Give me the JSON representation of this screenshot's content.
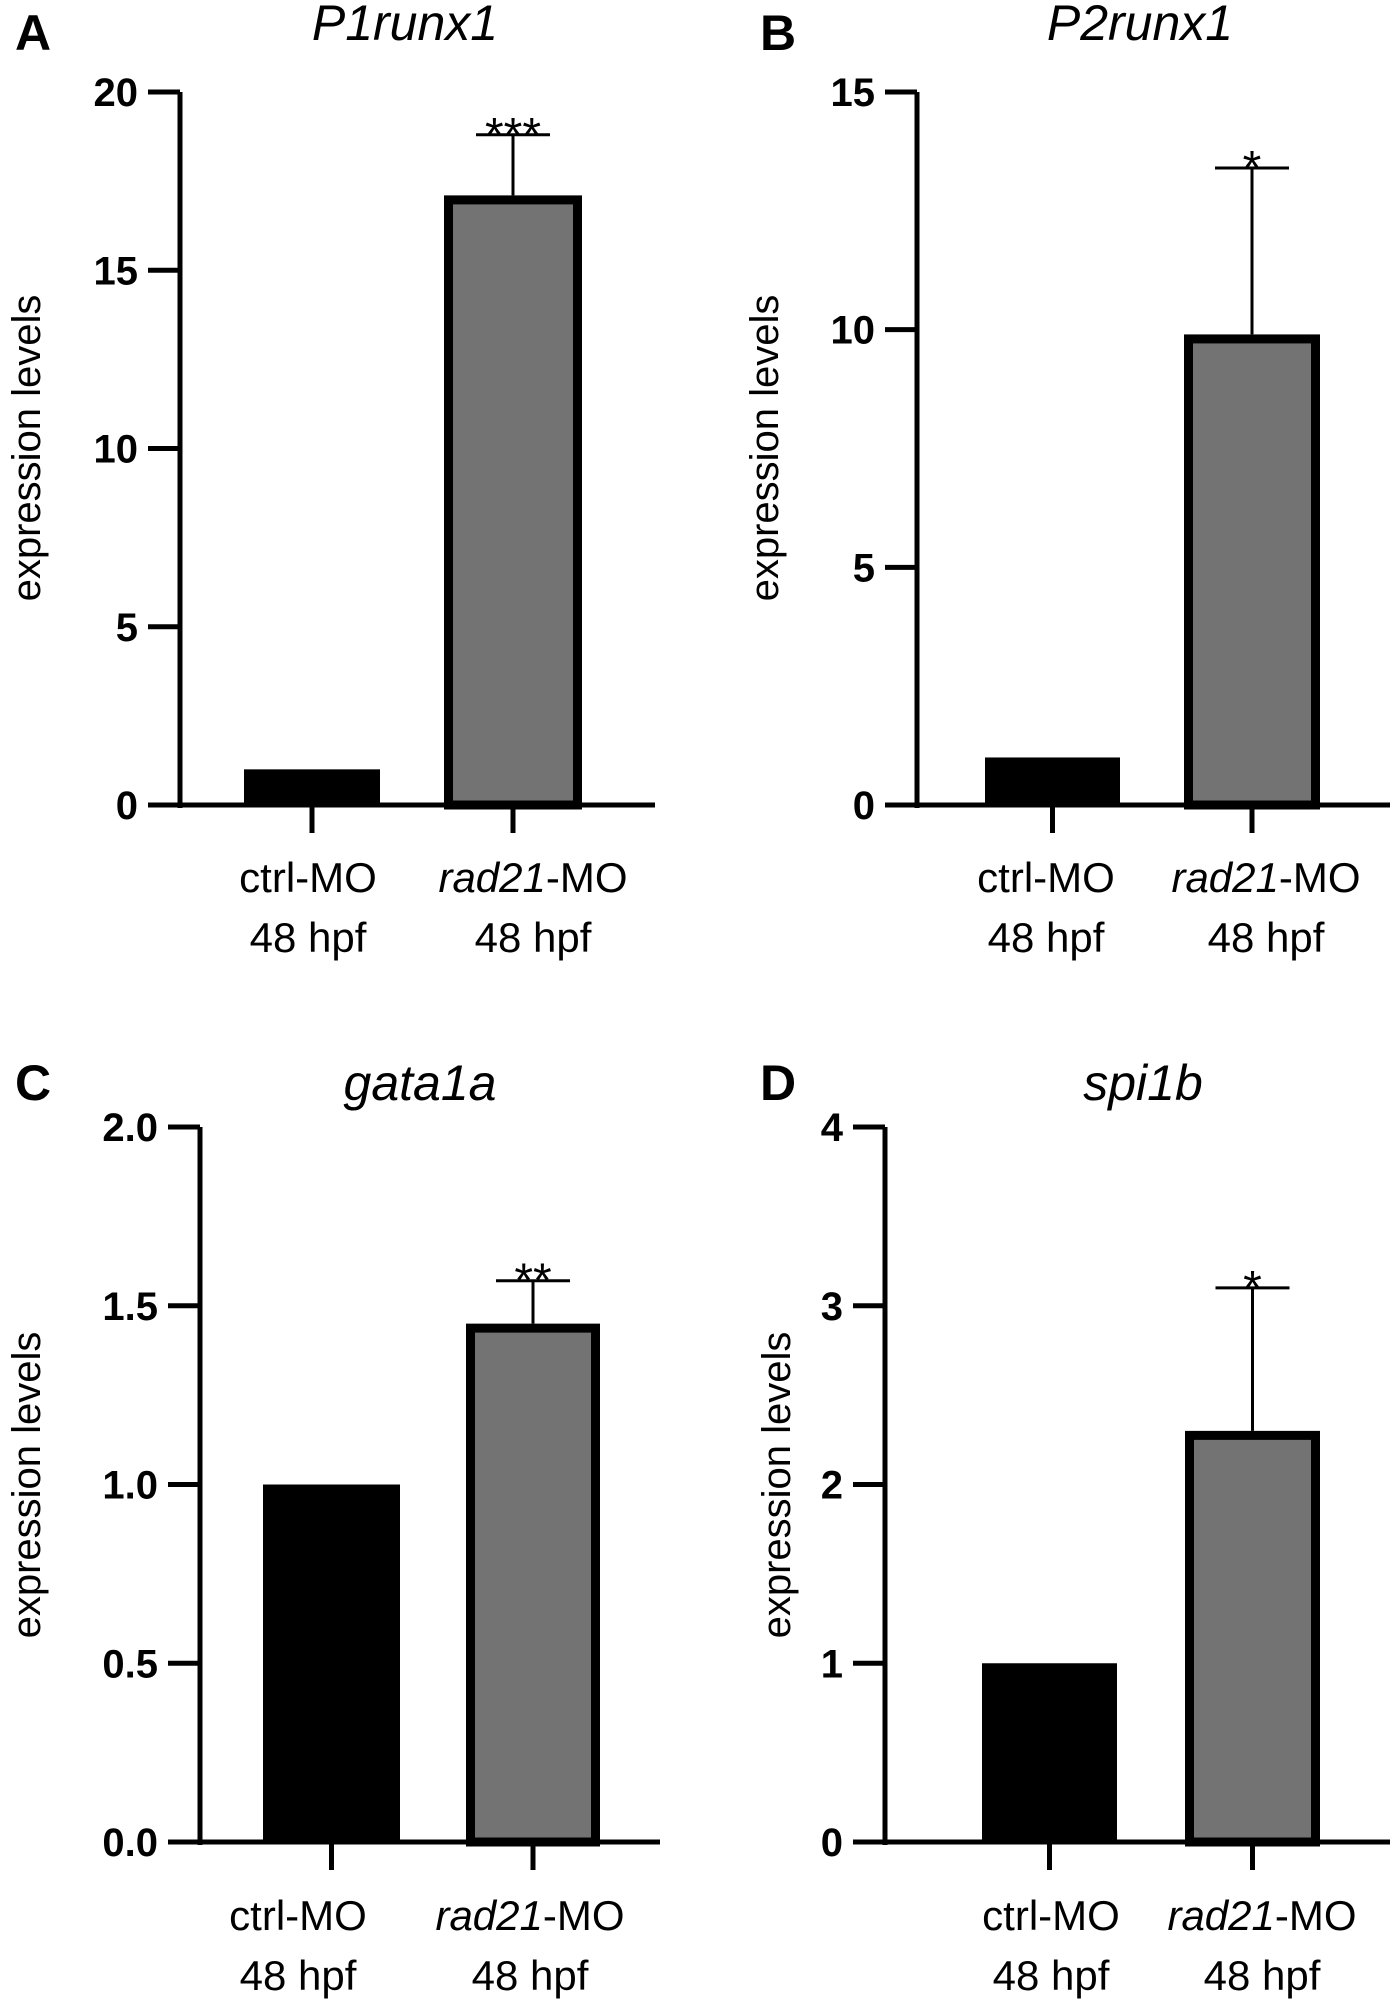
{
  "chart_data": [
    {
      "type": "bar",
      "panel": "A",
      "title": "P1runx1",
      "ylabel": "expression levels",
      "ylim": [
        0,
        20
      ],
      "yticks": [
        "0",
        "5",
        "10",
        "15",
        "20"
      ],
      "categories": [
        {
          "name": "ctrl-MO",
          "italic_prefix": "",
          "suffix": "ctrl-MO",
          "line2": "48 hpf"
        },
        {
          "name": "rad21-MO",
          "italic_prefix": "rad21",
          "suffix": "-MO",
          "line2": "48 hpf"
        }
      ],
      "values": [
        1.0,
        17.1
      ],
      "errors": [
        0,
        1.7
      ],
      "significance": [
        "",
        "***"
      ],
      "colors": [
        "#000000",
        "#737373"
      ]
    },
    {
      "type": "bar",
      "panel": "B",
      "title": "P2runx1",
      "ylabel": "expression levels",
      "ylim": [
        0,
        15
      ],
      "yticks": [
        "0",
        "5",
        "10",
        "15"
      ],
      "categories": [
        {
          "name": "ctrl-MO",
          "italic_prefix": "",
          "suffix": "ctrl-MO",
          "line2": "48 hpf"
        },
        {
          "name": "rad21-MO",
          "italic_prefix": "rad21",
          "suffix": "-MO",
          "line2": "48 hpf"
        }
      ],
      "values": [
        1.0,
        9.9
      ],
      "errors": [
        0,
        3.5
      ],
      "significance": [
        "",
        "*"
      ],
      "colors": [
        "#000000",
        "#737373"
      ]
    },
    {
      "type": "bar",
      "panel": "C",
      "title": "gata1a",
      "ylabel": "expression levels",
      "ylim": [
        0,
        2.0
      ],
      "yticks": [
        "0.0",
        "0.5",
        "1.0",
        "1.5",
        "2.0"
      ],
      "categories": [
        {
          "name": "ctrl-MO",
          "italic_prefix": "",
          "suffix": "ctrl-MO",
          "line2": "48 hpf"
        },
        {
          "name": "rad21-MO",
          "italic_prefix": "rad21",
          "suffix": "-MO",
          "line2": "48 hpf"
        }
      ],
      "values": [
        1.0,
        1.45
      ],
      "errors": [
        0,
        0.12
      ],
      "significance": [
        "",
        "**"
      ],
      "colors": [
        "#000000",
        "#737373"
      ]
    },
    {
      "type": "bar",
      "panel": "D",
      "title": "spi1b",
      "ylabel": "expression levels",
      "ylim": [
        0,
        4
      ],
      "yticks": [
        "0",
        "1",
        "2",
        "3",
        "4"
      ],
      "categories": [
        {
          "name": "ctrl-MO",
          "italic_prefix": "",
          "suffix": "ctrl-MO",
          "line2": "48 hpf"
        },
        {
          "name": "rad21-MO",
          "italic_prefix": "rad21",
          "suffix": "-MO",
          "line2": "48 hpf"
        }
      ],
      "values": [
        1.0,
        2.3
      ],
      "errors": [
        0,
        0.8
      ],
      "significance": [
        "",
        "*"
      ],
      "colors": [
        "#000000",
        "#737373"
      ]
    }
  ]
}
